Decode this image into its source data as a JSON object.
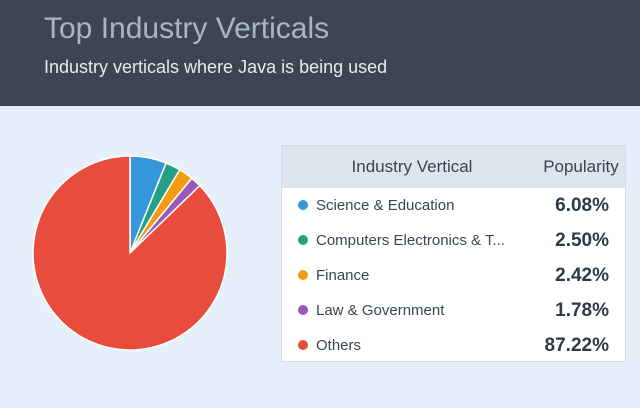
{
  "header": {
    "title": "Top Industry Verticals",
    "subtitle": "Industry verticals where Java is being used"
  },
  "table": {
    "col_vertical": "Industry Vertical",
    "col_popularity": "Popularity",
    "rows": [
      {
        "label": "Science & Education",
        "value": "6.08%",
        "color": "#3498db"
      },
      {
        "label": "Computers Electronics & T...",
        "value": "2.50%",
        "color": "#26a085"
      },
      {
        "label": "Finance",
        "value": "2.42%",
        "color": "#f39c12"
      },
      {
        "label": "Law & Government",
        "value": "1.78%",
        "color": "#9b59b6"
      },
      {
        "label": "Others",
        "value": "87.22%",
        "color": "#e74c3c"
      }
    ]
  },
  "chart_data": {
    "type": "pie",
    "title": "Top Industry Verticals",
    "subtitle": "Industry verticals where Java is being used",
    "categories": [
      "Science & Education",
      "Computers Electronics & T...",
      "Finance",
      "Law & Government",
      "Others"
    ],
    "values": [
      6.08,
      2.5,
      2.42,
      1.78,
      87.22
    ],
    "colors": [
      "#3498db",
      "#26a085",
      "#f39c12",
      "#9b59b6",
      "#e74c3c"
    ],
    "legend": "right",
    "start_angle_deg": 0,
    "direction": "clockwise"
  }
}
